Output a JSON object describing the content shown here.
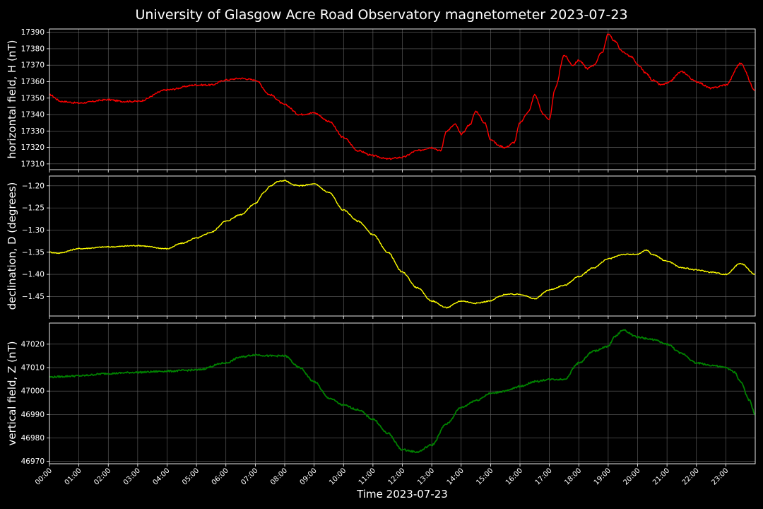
{
  "title": "University of Glasgow Acre Road Observatory magnetometer 2023-07-23",
  "xlabel": "Time 2023-07-23",
  "colors": {
    "background": "#000000",
    "axes": "#ffffff",
    "grid": "#666666"
  },
  "chart_data": [
    {
      "type": "line",
      "ylabel": "horizontal field, H (nT)",
      "color": "#ff0000",
      "ylim": [
        17306.5,
        17392
      ],
      "yticks": [
        17310,
        17320,
        17330,
        17340,
        17350,
        17360,
        17370,
        17380,
        17390
      ],
      "series": [
        {
          "x": [
            0,
            0.4,
            1,
            2,
            2.5,
            3,
            4,
            5,
            5.5,
            6,
            6.5,
            7,
            7.5,
            8,
            8.5,
            9,
            9.5,
            10,
            10.5,
            11,
            11.5,
            12,
            12.5,
            13,
            13.3,
            13.5,
            13.8,
            14,
            14.3,
            14.5,
            14.8,
            15,
            15.3,
            15.5,
            15.8,
            16,
            16.3,
            16.5,
            16.8,
            17,
            17.2,
            17.5,
            17.8,
            18,
            18.3,
            18.5,
            18.8,
            19,
            19.2,
            19.5,
            19.8,
            20,
            20.3,
            20.5,
            20.8,
            21,
            21.5,
            22,
            22.5,
            23,
            23.5,
            24
          ],
          "values": [
            17352,
            17348,
            17347,
            17349,
            17348,
            17348,
            17355,
            17358,
            17358,
            17361,
            17362,
            17361,
            17352,
            17346,
            17340,
            17341,
            17336,
            17326,
            17318,
            17315,
            17313,
            17314,
            17318,
            17320,
            17318,
            17330,
            17334,
            17328,
            17334,
            17342,
            17335,
            17325,
            17321,
            17320,
            17323,
            17335,
            17342,
            17352,
            17340,
            17337,
            17356,
            17376,
            17370,
            17373,
            17368,
            17370,
            17378,
            17389,
            17385,
            17378,
            17375,
            17370,
            17365,
            17361,
            17358,
            17359,
            17366,
            17360,
            17356,
            17358,
            17371,
            17355
          ]
        }
      ]
    },
    {
      "type": "line",
      "ylabel": "declination, D (degrees)",
      "color": "#ffff00",
      "ylim": [
        -1.494,
        -1.178
      ],
      "yticks": [
        -1.2,
        -1.25,
        -1.3,
        -1.35,
        -1.4,
        -1.45
      ],
      "ytick_labels": [
        "−1.20",
        "−1.25",
        "−1.30",
        "−1.35",
        "−1.40",
        "−1.45"
      ],
      "series": [
        {
          "x": [
            0,
            0.3,
            1,
            2,
            3,
            4,
            4.5,
            5,
            5.5,
            6,
            6.5,
            7,
            7.3,
            7.5,
            7.8,
            8,
            8.3,
            8.5,
            9,
            9.5,
            10,
            10.5,
            11,
            11.5,
            12,
            12.5,
            13,
            13.5,
            14,
            14.5,
            15,
            15.3,
            15.5,
            16,
            16.5,
            17,
            17.5,
            18,
            18.5,
            19,
            19.5,
            20,
            20.3,
            20.5,
            21,
            21.5,
            22,
            22.5,
            23,
            23.5,
            24
          ],
          "values": [
            -1.35,
            -1.352,
            -1.342,
            -1.338,
            -1.335,
            -1.342,
            -1.33,
            -1.318,
            -1.305,
            -1.28,
            -1.265,
            -1.24,
            -1.215,
            -1.2,
            -1.19,
            -1.188,
            -1.198,
            -1.2,
            -1.196,
            -1.215,
            -1.255,
            -1.28,
            -1.31,
            -1.35,
            -1.395,
            -1.43,
            -1.46,
            -1.475,
            -1.46,
            -1.465,
            -1.46,
            -1.45,
            -1.445,
            -1.445,
            -1.455,
            -1.435,
            -1.425,
            -1.405,
            -1.385,
            -1.365,
            -1.355,
            -1.355,
            -1.345,
            -1.355,
            -1.37,
            -1.385,
            -1.39,
            -1.395,
            -1.4,
            -1.375,
            -1.4
          ]
        }
      ]
    },
    {
      "type": "line",
      "ylabel": "vertical field, Z (nT)",
      "color": "#008000",
      "ylim": [
        46969,
        47029
      ],
      "yticks": [
        46970,
        46980,
        46990,
        47000,
        47010,
        47020
      ],
      "series": [
        {
          "x": [
            0,
            1,
            2,
            3,
            4,
            5,
            6,
            6.5,
            7,
            7.5,
            8,
            8.5,
            9,
            9.5,
            10,
            10.5,
            11,
            11.5,
            12,
            12.5,
            13,
            13.5,
            14,
            14.5,
            15,
            15.5,
            16,
            16.5,
            17,
            17.5,
            18,
            18.5,
            19,
            19.2,
            19.5,
            20,
            20.5,
            21,
            21.5,
            22,
            22.5,
            23,
            23.3,
            23.5,
            23.8,
            24
          ],
          "values": [
            47006,
            47006.5,
            47007.5,
            47008,
            47008.5,
            47009,
            47012,
            47014.5,
            47015.5,
            47015,
            47015,
            47010,
            47004,
            46997,
            46994,
            46992,
            46988,
            46982,
            46975,
            46974,
            46977,
            46986,
            46993,
            46996,
            46999,
            47000,
            47002,
            47004,
            47005,
            47005,
            47012,
            47017,
            47019,
            47023,
            47026,
            47023,
            47022,
            47020,
            47016,
            47012,
            47011,
            47010,
            47008,
            47004,
            46996,
            46990
          ]
        }
      ]
    }
  ],
  "xticks": [
    "00:00",
    "01:00",
    "02:00",
    "03:00",
    "04:00",
    "05:00",
    "06:00",
    "07:00",
    "08:00",
    "09:00",
    "10:00",
    "11:00",
    "12:00",
    "13:00",
    "14:00",
    "15:00",
    "16:00",
    "17:00",
    "18:00",
    "19:00",
    "20:00",
    "21:00",
    "22:00",
    "23:00"
  ]
}
